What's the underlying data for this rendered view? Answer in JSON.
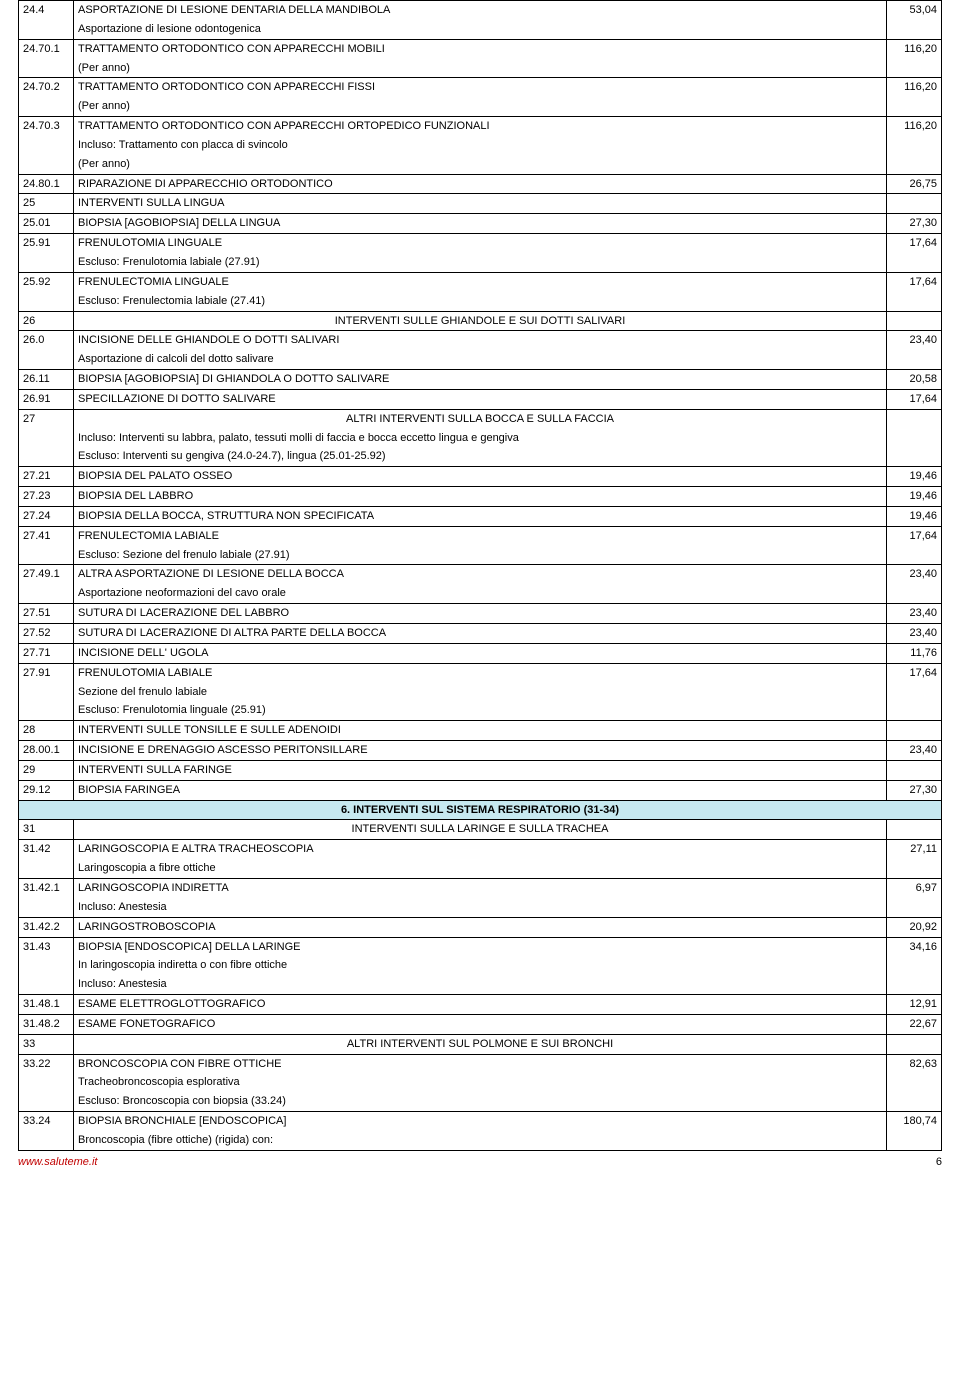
{
  "footer": {
    "site": "www.saluteme.it",
    "page": "6"
  },
  "groups": [
    {
      "type": "row",
      "code": "24.4",
      "lines": [
        "ASPORTAZIONE DI LESIONE DENTARIA DELLA MANDIBOLA",
        "Asportazione di lesione odontogenica"
      ],
      "value": "53,04"
    },
    {
      "type": "row",
      "code": "24.70.1",
      "lines": [
        "TRATTAMENTO ORTODONTICO CON APPARECCHI MOBILI",
        "(Per anno)"
      ],
      "value": "116,20"
    },
    {
      "type": "row",
      "code": "24.70.2",
      "lines": [
        "TRATTAMENTO ORTODONTICO CON APPARECCHI FISSI",
        "(Per anno)"
      ],
      "value": "116,20"
    },
    {
      "type": "row",
      "code": "24.70.3",
      "lines": [
        "TRATTAMENTO ORTODONTICO CON APPARECCHI ORTOPEDICO FUNZIONALI",
        "Incluso: Trattamento con placca di svincolo",
        "(Per anno)"
      ],
      "value": "116,20"
    },
    {
      "type": "row",
      "code": "24.80.1",
      "lines": [
        "RIPARAZIONE DI APPARECCHIO ORTODONTICO"
      ],
      "value": "26,75"
    },
    {
      "type": "row",
      "code": "25",
      "lines": [
        "INTERVENTI SULLA LINGUA"
      ],
      "value": ""
    },
    {
      "type": "row",
      "code": "25.01",
      "lines": [
        "BIOPSIA [AGOBIOPSIA] DELLA LINGUA"
      ],
      "value": "27,30"
    },
    {
      "type": "row",
      "code": "25.91",
      "lines": [
        "FRENULOTOMIA LINGUALE",
        "Escluso: Frenulotomia labiale (27.91)"
      ],
      "value": "17,64"
    },
    {
      "type": "row",
      "code": "25.92",
      "lines": [
        "FRENULECTOMIA LINGUALE",
        "Escluso: Frenulectomia labiale (27.41)"
      ],
      "value": "17,64"
    },
    {
      "type": "row",
      "code": "26",
      "center": true,
      "lines": [
        "INTERVENTI SULLE GHIANDOLE E SUI DOTTI SALIVARI"
      ],
      "value": ""
    },
    {
      "type": "row",
      "code": "26.0",
      "lines": [
        "INCISIONE DELLE GHIANDOLE O DOTTI SALIVARI",
        "Asportazione di calcoli del dotto salivare"
      ],
      "value": "23,40"
    },
    {
      "type": "row",
      "code": "26.11",
      "lines": [
        "BIOPSIA [AGOBIOPSIA] DI GHIANDOLA O DOTTO SALIVARE"
      ],
      "value": "20,58"
    },
    {
      "type": "row",
      "code": "26.91",
      "lines": [
        "SPECILLAZIONE DI DOTTO SALIVARE"
      ],
      "value": "17,64"
    },
    {
      "type": "row",
      "code": "27",
      "center": true,
      "lines": [
        "ALTRI INTERVENTI SULLA BOCCA E SULLA FACCIA",
        "Incluso: Interventi su labbra, palato, tessuti molli di faccia e bocca eccetto lingua e gengiva",
        "Escluso: Interventi su gengiva (24.0-24.7), lingua (25.01-25.92)"
      ],
      "value": ""
    },
    {
      "type": "row",
      "code": "27.21",
      "lines": [
        "BIOPSIA DEL PALATO OSSEO"
      ],
      "value": "19,46"
    },
    {
      "type": "row",
      "code": "27.23",
      "lines": [
        "BIOPSIA DEL LABBRO"
      ],
      "value": "19,46"
    },
    {
      "type": "row",
      "code": "27.24",
      "lines": [
        "BIOPSIA DELLA BOCCA, STRUTTURA NON SPECIFICATA"
      ],
      "value": "19,46"
    },
    {
      "type": "row",
      "code": "27.41",
      "lines": [
        "FRENULECTOMIA LABIALE",
        "Escluso: Sezione del frenulo labiale (27.91)"
      ],
      "value": "17,64"
    },
    {
      "type": "row",
      "code": "27.49.1",
      "lines": [
        "ALTRA ASPORTAZIONE DI LESIONE DELLA BOCCA",
        "Asportazione neoformazioni del cavo orale"
      ],
      "value": "23,40"
    },
    {
      "type": "row",
      "code": "27.51",
      "lines": [
        "SUTURA DI LACERAZIONE DEL LABBRO"
      ],
      "value": "23,40"
    },
    {
      "type": "row",
      "code": "27.52",
      "lines": [
        "SUTURA DI LACERAZIONE DI ALTRA PARTE DELLA BOCCA"
      ],
      "value": "23,40"
    },
    {
      "type": "row",
      "code": "27.71",
      "lines": [
        "INCISIONE DELL' UGOLA"
      ],
      "value": "11,76"
    },
    {
      "type": "row",
      "code": "27.91",
      "lines": [
        "FRENULOTOMIA LABIALE",
        "Sezione del frenulo labiale",
        "Escluso: Frenulotomia linguale (25.91)"
      ],
      "value": "17,64"
    },
    {
      "type": "row",
      "code": "28",
      "lines": [
        "INTERVENTI SULLE TONSILLE E SULLE ADENOIDI"
      ],
      "value": ""
    },
    {
      "type": "row",
      "code": "28.00.1",
      "lines": [
        "INCISIONE E DRENAGGIO ASCESSO PERITONSILLARE"
      ],
      "value": "23,40"
    },
    {
      "type": "row",
      "code": "29",
      "lines": [
        "INTERVENTI SULLA  FARINGE"
      ],
      "value": ""
    },
    {
      "type": "row",
      "code": "29.12",
      "lines": [
        "BIOPSIA FARINGEA"
      ],
      "value": "27,30"
    },
    {
      "type": "section",
      "text": "6. INTERVENTI SUL SISTEMA RESPIRATORIO (31-34)"
    },
    {
      "type": "row",
      "code": "31",
      "center": true,
      "lines": [
        "INTERVENTI SULLA LARINGE E SULLA TRACHEA"
      ],
      "value": ""
    },
    {
      "type": "row",
      "code": "31.42",
      "lines": [
        "LARINGOSCOPIA E ALTRA TRACHEOSCOPIA",
        "Laringoscopia a fibre ottiche"
      ],
      "value": "27,11"
    },
    {
      "type": "row",
      "code": "31.42.1",
      "lines": [
        "LARINGOSCOPIA INDIRETTA",
        "Incluso: Anestesia"
      ],
      "value": "6,97"
    },
    {
      "type": "row",
      "code": "31.42.2",
      "lines": [
        "LARINGOSTROBOSCOPIA"
      ],
      "value": "20,92"
    },
    {
      "type": "row",
      "code": "31.43",
      "lines": [
        "BIOPSIA [ENDOSCOPICA] DELLA LARINGE",
        "In laringoscopia indiretta o con fibre ottiche",
        "Incluso: Anestesia"
      ],
      "value": "34,16"
    },
    {
      "type": "row",
      "code": "31.48.1",
      "lines": [
        "ESAME ELETTROGLOTTOGRAFICO"
      ],
      "value": "12,91"
    },
    {
      "type": "row",
      "code": "31.48.2",
      "lines": [
        "ESAME FONETOGRAFICO"
      ],
      "value": "22,67"
    },
    {
      "type": "row",
      "code": "33",
      "center": true,
      "lines": [
        "ALTRI INTERVENTI SUL POLMONE E SUI BRONCHI"
      ],
      "value": ""
    },
    {
      "type": "row",
      "code": "33.22",
      "lines": [
        "BRONCOSCOPIA CON FIBRE OTTICHE",
        "Tracheobroncoscopia esplorativa",
        "Escluso: Broncoscopia con biopsia (33.24)"
      ],
      "value": "82,63"
    },
    {
      "type": "row",
      "code": "33.24",
      "lines": [
        "BIOPSIA BRONCHIALE [ENDOSCOPICA]",
        "Broncoscopia (fibre ottiche) (rigida) con:"
      ],
      "value": "180,74"
    }
  ]
}
